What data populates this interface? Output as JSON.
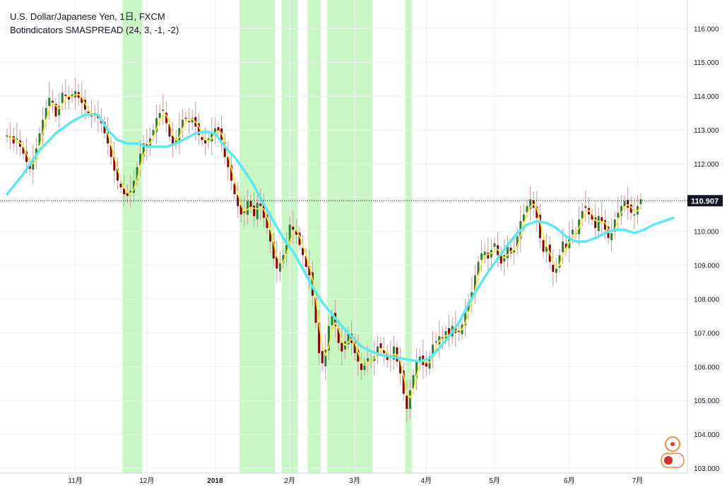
{
  "header": {
    "title": "U.S. Dollar/Japanese Yen, 1日, FXCM",
    "indicator": "Botindicators SMASPREAD (24, 3, -1, -2)"
  },
  "colors": {
    "background": "#ffffff",
    "grid": "#eef0f3",
    "axis_line": "#cfd3da",
    "up_candle": "#2e7d32",
    "down_candle": "#8b0000",
    "wick": "#c99aa0",
    "fast_line": "#ffeb3b",
    "slow_line": "#5ce8f0",
    "highlight": "#c8f7c5",
    "price_tag": "#131722"
  },
  "chart_data": {
    "type": "candlestick",
    "symbol": "U.S. Dollar/Japanese Yen",
    "timeframe": "1日",
    "source": "FXCM",
    "ylim": [
      102.8,
      116.4
    ],
    "yticks": [
      103.0,
      104.0,
      105.0,
      106.0,
      107.0,
      108.0,
      109.0,
      110.0,
      111.0,
      112.0,
      113.0,
      114.0,
      115.0,
      116.0
    ],
    "ytick_labels": [
      "103.000",
      "104.000",
      "105.000",
      "106.000",
      "107.000",
      "108.000",
      "109.000",
      "110.000",
      "111.000",
      "112.000",
      "113.000",
      "114.000",
      "115.000",
      "116.000"
    ],
    "xticks": [
      {
        "label": "11月",
        "bar": 21,
        "bold": false
      },
      {
        "label": "12月",
        "bar": 43,
        "bold": false
      },
      {
        "label": "2018",
        "bar": 64,
        "bold": true
      },
      {
        "label": "2月",
        "bar": 87,
        "bold": false
      },
      {
        "label": "3月",
        "bar": 107,
        "bold": false
      },
      {
        "label": "4月",
        "bar": 129,
        "bold": false
      },
      {
        "label": "5月",
        "bar": 150,
        "bold": false
      },
      {
        "label": "6月",
        "bar": 173,
        "bold": false
      },
      {
        "label": "7月",
        "bar": 194,
        "bold": false
      }
    ],
    "last_price": 110.907,
    "last_price_label": "110.907",
    "highlight_ranges": [
      [
        36,
        41
      ],
      [
        72,
        82
      ],
      [
        85,
        89
      ],
      [
        93,
        96
      ],
      [
        99,
        105
      ],
      [
        106,
        112
      ],
      [
        123,
        124
      ]
    ],
    "closes": [
      112.85,
      112.78,
      112.6,
      112.75,
      112.5,
      112.3,
      112.05,
      111.85,
      112.1,
      112.45,
      112.9,
      113.3,
      113.65,
      113.95,
      113.8,
      113.4,
      113.7,
      114.1,
      114.0,
      113.9,
      114.05,
      114.15,
      113.95,
      113.8,
      113.6,
      113.5,
      113.4,
      113.5,
      113.35,
      113.2,
      112.9,
      112.6,
      112.2,
      111.8,
      111.5,
      111.3,
      111.1,
      111.05,
      111.2,
      111.5,
      111.9,
      112.3,
      112.6,
      112.5,
      112.75,
      113.0,
      113.35,
      113.5,
      113.6,
      113.2,
      112.8,
      112.55,
      112.75,
      113.05,
      113.3,
      113.35,
      113.25,
      113.35,
      113.1,
      112.85,
      112.7,
      112.6,
      112.75,
      112.9,
      113.05,
      112.95,
      112.7,
      112.2,
      111.9,
      111.5,
      111.1,
      110.75,
      110.5,
      110.55,
      110.9,
      110.7,
      110.45,
      110.85,
      110.75,
      110.4,
      110.1,
      109.7,
      109.2,
      108.9,
      109.1,
      109.3,
      109.6,
      110.2,
      110.05,
      109.9,
      109.6,
      109.3,
      108.95,
      108.7,
      108.1,
      107.3,
      106.4,
      106.1,
      106.5,
      107.2,
      107.5,
      107.2,
      106.7,
      106.45,
      106.75,
      107.0,
      106.7,
      106.4,
      106.15,
      105.9,
      106.1,
      106.25,
      106.2,
      106.3,
      106.6,
      106.55,
      106.4,
      106.2,
      106.3,
      106.6,
      106.15,
      105.8,
      105.2,
      104.75,
      105.3,
      105.75,
      106.15,
      106.3,
      106.05,
      106.0,
      106.3,
      106.65,
      106.75,
      106.9,
      106.8,
      107.05,
      106.95,
      107.2,
      107.0,
      107.05,
      107.25,
      107.6,
      107.9,
      108.2,
      108.7,
      109.1,
      109.35,
      109.4,
      109.2,
      109.45,
      109.65,
      109.3,
      109.05,
      109.3,
      109.55,
      109.35,
      109.45,
      109.85,
      110.3,
      110.5,
      110.75,
      110.95,
      110.7,
      110.4,
      109.8,
      109.4,
      109.55,
      109.1,
      108.8,
      108.9,
      109.3,
      109.7,
      109.5,
      109.85,
      110.05,
      109.95,
      110.35,
      110.6,
      110.75,
      110.5,
      110.35,
      110.1,
      110.45,
      110.3,
      110.05,
      109.8,
      110.0,
      110.35,
      110.55,
      110.75,
      110.9,
      110.7,
      110.55,
      110.5,
      110.75,
      110.95
    ],
    "slow_line": [
      [
        0,
        111.1
      ],
      [
        5,
        111.7
      ],
      [
        10,
        112.4
      ],
      [
        15,
        112.9
      ],
      [
        20,
        113.25
      ],
      [
        24,
        113.45
      ],
      [
        28,
        113.45
      ],
      [
        31,
        113.0
      ],
      [
        34,
        112.7
      ],
      [
        37,
        112.6
      ],
      [
        40,
        112.6
      ],
      [
        43,
        112.5
      ],
      [
        46,
        112.5
      ],
      [
        49,
        112.5
      ],
      [
        52,
        112.6
      ],
      [
        55,
        112.75
      ],
      [
        58,
        112.9
      ],
      [
        61,
        112.95
      ],
      [
        64,
        112.9
      ],
      [
        67,
        112.5
      ],
      [
        70,
        112.2
      ],
      [
        73,
        111.8
      ],
      [
        76,
        111.35
      ],
      [
        79,
        110.8
      ],
      [
        82,
        110.3
      ],
      [
        85,
        109.8
      ],
      [
        88,
        109.4
      ],
      [
        91,
        108.9
      ],
      [
        94,
        108.35
      ],
      [
        97,
        107.9
      ],
      [
        100,
        107.55
      ],
      [
        103,
        107.2
      ],
      [
        106,
        106.9
      ],
      [
        109,
        106.6
      ],
      [
        112,
        106.45
      ],
      [
        115,
        106.35
      ],
      [
        118,
        106.3
      ],
      [
        121,
        106.25
      ],
      [
        124,
        106.2
      ],
      [
        127,
        106.15
      ],
      [
        130,
        106.25
      ],
      [
        133,
        106.55
      ],
      [
        136,
        106.9
      ],
      [
        139,
        107.3
      ],
      [
        142,
        107.85
      ],
      [
        145,
        108.35
      ],
      [
        148,
        108.8
      ],
      [
        151,
        109.2
      ],
      [
        154,
        109.6
      ],
      [
        157,
        109.95
      ],
      [
        160,
        110.2
      ],
      [
        163,
        110.3
      ],
      [
        166,
        110.25
      ],
      [
        169,
        110.1
      ],
      [
        172,
        109.85
      ],
      [
        175,
        109.7
      ],
      [
        178,
        109.7
      ],
      [
        181,
        109.8
      ],
      [
        184,
        109.95
      ],
      [
        187,
        110.05
      ],
      [
        190,
        110.05
      ],
      [
        193,
        109.95
      ],
      [
        196,
        110.05
      ],
      [
        199,
        110.2
      ],
      [
        202,
        110.3
      ],
      [
        205,
        110.4
      ]
    ]
  }
}
